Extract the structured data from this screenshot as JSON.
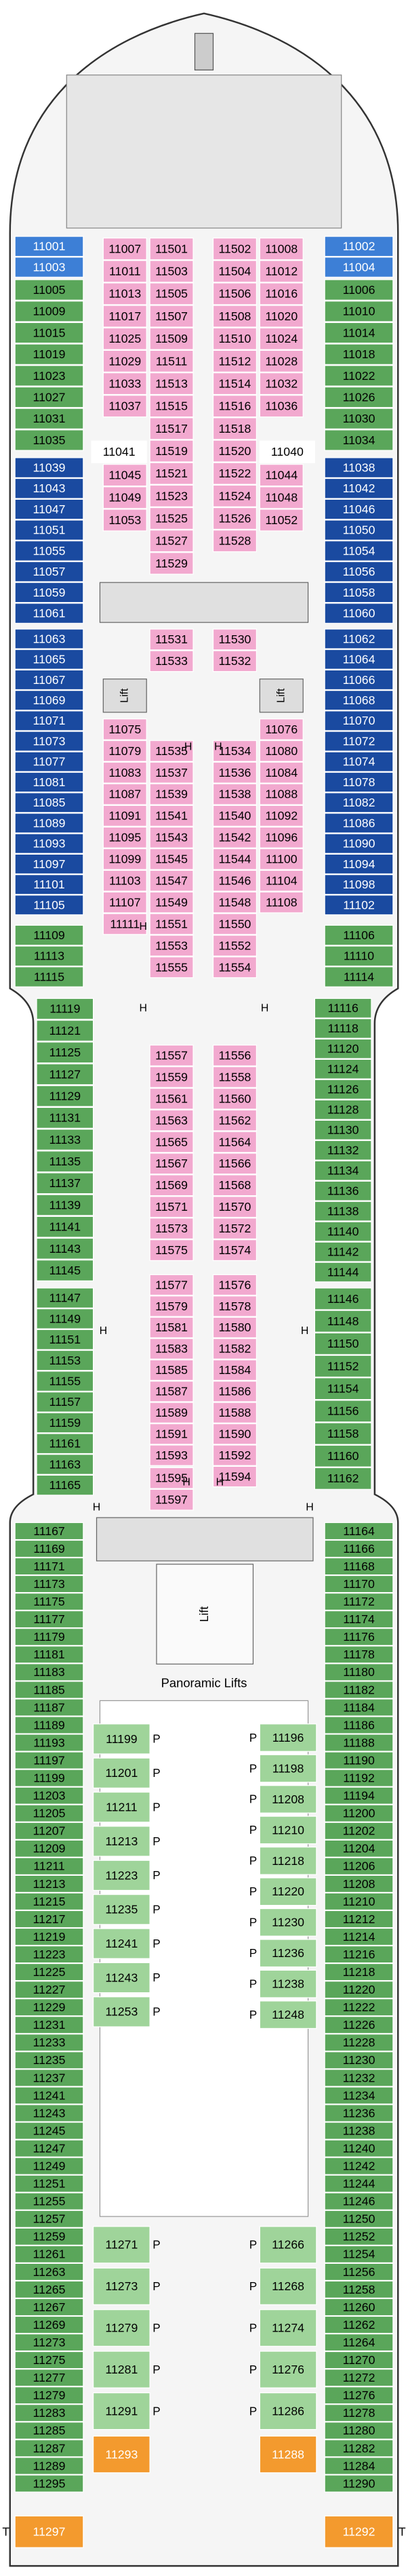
{
  "symbols": {
    "lift": "Lift",
    "panoramic": "Panoramic Lifts",
    "handicap": "H",
    "pool": "P",
    "tender": "T"
  },
  "cabin_groups": [
    {
      "color": "#3d7fd6",
      "text_color": "#ffffff",
      "cabins": [
        "11001",
        "11003"
      ]
    },
    {
      "color": "#3d7fd6",
      "text_color": "#ffffff",
      "cabins": [
        "11002",
        "11004"
      ]
    },
    {
      "color": "#5aa65a",
      "text_color": "#000000",
      "cabins": [
        "11005",
        "11009",
        "11015",
        "11019",
        "11023",
        "11027",
        "11031",
        "11035"
      ]
    },
    {
      "color": "#5aa65a",
      "text_color": "#000000",
      "cabins": [
        "11006",
        "11010",
        "11014",
        "11018",
        "11022",
        "11026",
        "11030",
        "11034"
      ]
    },
    {
      "color": "#1a4aa0",
      "text_color": "#ffffff",
      "cabins": [
        "11039",
        "11043",
        "11047",
        "11051",
        "11055",
        "11057",
        "11059",
        "11061"
      ]
    },
    {
      "color": "#1a4aa0",
      "text_color": "#ffffff",
      "cabins": [
        "11038",
        "11042",
        "11046",
        "11050",
        "11054",
        "11056",
        "11058",
        "11060"
      ]
    },
    {
      "color": "#1a4aa0",
      "text_color": "#ffffff",
      "cabins": [
        "11063",
        "11065",
        "11067",
        "11069",
        "11071",
        "11073",
        "11077",
        "11081",
        "11085",
        "11089",
        "11093",
        "11097",
        "11101",
        "11105"
      ]
    },
    {
      "color": "#1a4aa0",
      "text_color": "#ffffff",
      "cabins": [
        "11062",
        "11064",
        "11066",
        "11068",
        "11070",
        "11072",
        "11074",
        "11078",
        "11082",
        "11086",
        "11090",
        "11094",
        "11098",
        "11102"
      ]
    },
    {
      "color": "#5aa65a",
      "text_color": "#000000",
      "cabins": [
        "11109",
        "11113",
        "11115"
      ]
    },
    {
      "color": "#5aa65a",
      "text_color": "#000000",
      "cabins": [
        "11106",
        "11110",
        "11114"
      ]
    },
    {
      "color": "#5aa65a",
      "text_color": "#000000",
      "cabins": [
        "11119",
        "11121",
        "11125",
        "11127",
        "11129",
        "11131",
        "11133",
        "11135",
        "11137",
        "11139",
        "11141",
        "11143",
        "11145"
      ]
    },
    {
      "color": "#5aa65a",
      "text_color": "#000000",
      "cabins": [
        "11116",
        "11118",
        "11120",
        "11124",
        "11126",
        "11128",
        "11130",
        "11132",
        "11134",
        "11136",
        "11138",
        "11140",
        "11142",
        "11144"
      ]
    },
    {
      "color": "#5aa65a",
      "text_color": "#000000",
      "cabins": [
        "11147",
        "11149",
        "11151",
        "11153",
        "11155",
        "11157",
        "11159",
        "11161",
        "11163",
        "11165"
      ]
    },
    {
      "color": "#5aa65a",
      "text_color": "#000000",
      "cabins": [
        "11146",
        "11148",
        "11150",
        "11152",
        "11154",
        "11156",
        "11158",
        "11160",
        "11162"
      ]
    },
    {
      "color": "#5aa65a",
      "text_color": "#000000",
      "cabins": [
        "11167",
        "11169",
        "11171",
        "11173",
        "11175",
        "11177",
        "11179",
        "11181",
        "11183",
        "11185",
        "11187",
        "11189",
        "11193",
        "11197",
        "11199",
        "11203",
        "11205",
        "11207",
        "11209",
        "11211",
        "11213",
        "11215",
        "11217",
        "11219",
        "11223",
        "11225",
        "11227",
        "11229",
        "11231",
        "11233",
        "11235",
        "11237",
        "11241",
        "11243",
        "11245",
        "11247",
        "11249",
        "11251",
        "11255",
        "11257",
        "11259",
        "11261",
        "11263",
        "11265",
        "11267",
        "11269",
        "11273",
        "11275",
        "11277",
        "11279",
        "11283",
        "11285",
        "11287",
        "11289",
        "11295"
      ]
    },
    {
      "color": "#5aa65a",
      "text_color": "#000000",
      "cabins": [
        "11164",
        "11166",
        "11168",
        "11170",
        "11172",
        "11174",
        "11176",
        "11178",
        "11180",
        "11182",
        "11184",
        "11186",
        "11188",
        "11190",
        "11192",
        "11194",
        "11200",
        "11202",
        "11204",
        "11206",
        "11208",
        "11210",
        "11212",
        "11214",
        "11216",
        "11218",
        "11220",
        "11222",
        "11226",
        "11228",
        "11230",
        "11232",
        "11234",
        "11236",
        "11238",
        "11240",
        "11242",
        "11244",
        "11246",
        "11250",
        "11252",
        "11254",
        "11256",
        "11258",
        "11260",
        "11262",
        "11264",
        "11270",
        "11272",
        "11276",
        "11278",
        "11280",
        "11282",
        "11284",
        "11290"
      ]
    },
    {
      "color": "#f39a2e",
      "text_color": "#ffffff",
      "cabins": [
        "11297"
      ]
    },
    {
      "color": "#f39a2e",
      "text_color": "#ffffff",
      "cabins": [
        "11292"
      ]
    },
    {
      "color": "#f2a9cf",
      "text_color": "#000000",
      "cabins": [
        "11007",
        "11011",
        "11013",
        "11017",
        "11025",
        "11029",
        "11033",
        "11037"
      ]
    },
    {
      "color": "#f2a9cf",
      "text_color": "#000000",
      "cabins": [
        "11501",
        "11503",
        "11505",
        "11507",
        "11509",
        "11511",
        "11513",
        "11515",
        "11517",
        "11519",
        "11521",
        "11523",
        "11525",
        "11527",
        "11529"
      ]
    },
    {
      "color": "#f2a9cf",
      "text_color": "#000000",
      "cabins": [
        "11502",
        "11504",
        "11506",
        "11508",
        "11510",
        "11512",
        "11514",
        "11516",
        "11518",
        "11520",
        "11522",
        "11524",
        "11526",
        "11528"
      ]
    },
    {
      "color": "#f2a9cf",
      "text_color": "#000000",
      "cabins": [
        "11008",
        "11012",
        "11016",
        "11020",
        "11024",
        "11028",
        "11032",
        "11036"
      ]
    },
    {
      "color": "#ffffff",
      "text_color": "#000000",
      "cabins": [
        "11041"
      ]
    },
    {
      "color": "#f2a9cf",
      "text_color": "#000000",
      "cabins": [
        "11045",
        "11049",
        "11053"
      ]
    },
    {
      "color": "#ffffff",
      "text_color": "#000000",
      "cabins": [
        "11040"
      ]
    },
    {
      "color": "#f2a9cf",
      "text_color": "#000000",
      "cabins": [
        "11044",
        "11048",
        "11052"
      ]
    },
    {
      "color": "#f2a9cf",
      "text_color": "#000000",
      "cabins": [
        "11531",
        "11533"
      ]
    },
    {
      "color": "#f2a9cf",
      "text_color": "#000000",
      "cabins": [
        "11530",
        "11532"
      ]
    },
    {
      "color": "#f2a9cf",
      "text_color": "#000000",
      "cabins": [
        "11075",
        "11079",
        "11083",
        "11087",
        "11091",
        "11095",
        "11099",
        "11103",
        "11107",
        "11111"
      ]
    },
    {
      "color": "#f2a9cf",
      "text_color": "#000000",
      "cabins": [
        "11535",
        "11537",
        "11539",
        "11541",
        "11543",
        "11545",
        "11547",
        "11549",
        "11551",
        "11553",
        "11555"
      ]
    },
    {
      "color": "#f2a9cf",
      "text_color": "#000000",
      "cabins": [
        "11534",
        "11536",
        "11538",
        "11540",
        "11542",
        "11544",
        "11546",
        "11548",
        "11550",
        "11552",
        "11554"
      ]
    },
    {
      "color": "#f2a9cf",
      "text_color": "#000000",
      "cabins": [
        "11076",
        "11080",
        "11084",
        "11088",
        "11092",
        "11096",
        "11100",
        "11104",
        "11108"
      ]
    },
    {
      "color": "#f2a9cf",
      "text_color": "#000000",
      "cabins": [
        "11557",
        "11559",
        "11561",
        "11563",
        "11565",
        "11567",
        "11569",
        "11571",
        "11573",
        "11575"
      ]
    },
    {
      "color": "#f2a9cf",
      "text_color": "#000000",
      "cabins": [
        "11556",
        "11558",
        "11560",
        "11562",
        "11564",
        "11566",
        "11568",
        "11570",
        "11572",
        "11574"
      ]
    },
    {
      "color": "#f2a9cf",
      "text_color": "#000000",
      "cabins": [
        "11577",
        "11579",
        "11581",
        "11583",
        "11585",
        "11587",
        "11589",
        "11591",
        "11593"
      ]
    },
    {
      "color": "#f2a9cf",
      "text_color": "#000000",
      "cabins": [
        "11576",
        "11578",
        "11580",
        "11582",
        "11584",
        "11586",
        "11588",
        "11590",
        "11592",
        "11594"
      ]
    },
    {
      "color": "#f2a9cf",
      "text_color": "#000000",
      "cabins": [
        "11595",
        "11597"
      ]
    },
    {
      "color": "#9fd49a",
      "text_color": "#000000",
      "cabins": [
        "11199",
        "11201",
        "11211",
        "11213",
        "11223",
        "11235",
        "11241",
        "11243",
        "11253"
      ]
    },
    {
      "color": "#9fd49a",
      "text_color": "#000000",
      "cabins": [
        "11196",
        "11198",
        "11208",
        "11210",
        "11218",
        "11220",
        "11230",
        "11236",
        "11238",
        "11248"
      ]
    },
    {
      "color": "#9fd49a",
      "text_color": "#000000",
      "cabins": [
        "11271",
        "11273",
        "11279",
        "11281",
        "11291"
      ]
    },
    {
      "color": "#9fd49a",
      "text_color": "#000000",
      "cabins": [
        "11266",
        "11268",
        "11274",
        "11276",
        "11286"
      ]
    },
    {
      "color": "#f39a2e",
      "text_color": "#ffffff",
      "cabins": [
        "11293"
      ]
    },
    {
      "color": "#f39a2e",
      "text_color": "#ffffff",
      "cabins": [
        "11288"
      ]
    }
  ]
}
